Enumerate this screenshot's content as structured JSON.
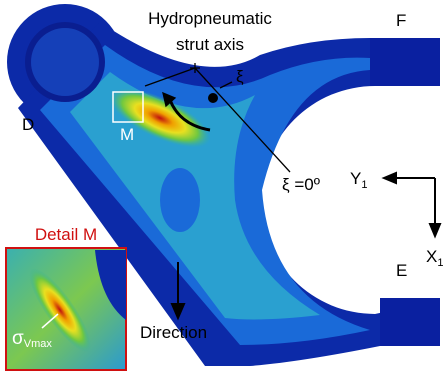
{
  "labels": {
    "strut_axis": [
      "Hydropneumatic",
      "strut axis"
    ],
    "F": "F",
    "xi": "ξ",
    "D": "D",
    "M": "M",
    "xi_zero": "ξ =0º",
    "Y1": {
      "main": "Y",
      "sub": "1"
    },
    "X1": {
      "main": "X",
      "sub": "1"
    },
    "E": "E",
    "detail": "Detail M",
    "sigma": {
      "main": "σ",
      "sub": "Vmax"
    },
    "direction": "Direction"
  }
}
